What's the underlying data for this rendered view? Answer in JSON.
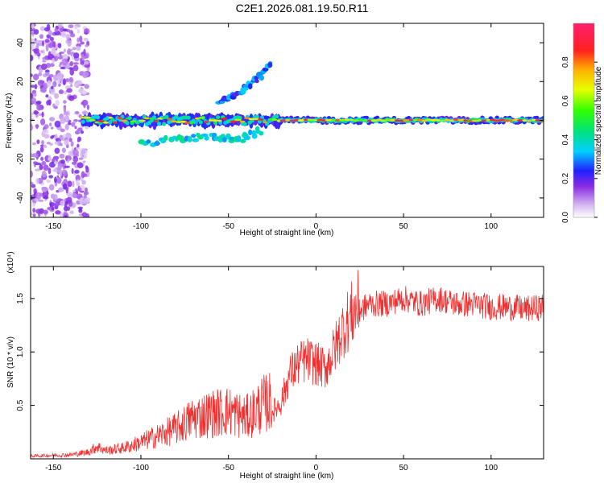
{
  "title": "C2E1.2026.081.19.50.R11",
  "chart_data": [
    {
      "type": "heatmap",
      "xlabel": "Height of straight line (km)",
      "ylabel": "Frequency (Hz)",
      "xlim": [
        -163,
        130
      ],
      "ylim": [
        -50,
        50
      ],
      "xticks": [
        -150,
        -100,
        -50,
        0,
        50,
        100
      ],
      "yticks": [
        -40,
        -20,
        0,
        20,
        40
      ],
      "colorbar": {
        "label": "Normalized spectral amplitude",
        "range": [
          0.0,
          1.0
        ],
        "ticks": [
          "0.0",
          "0.2",
          "0.4",
          "0.6",
          "0.8"
        ]
      },
      "signal": [
        {
          "name": "noise-region",
          "x_range": [
            -163,
            -130
          ],
          "y_range": [
            -50,
            50
          ],
          "amplitude": 0.1
        },
        {
          "name": "main-band",
          "x_range": [
            -133,
            130
          ],
          "center_freq": 0,
          "amplitude_range": [
            0.2,
            1.0
          ]
        },
        {
          "name": "upper-branch",
          "x": [
            -55,
            -45,
            -35,
            -25
          ],
          "y": [
            10,
            14,
            20,
            30
          ],
          "amplitude": 0.2
        },
        {
          "name": "lower-branch",
          "x": [
            -100,
            -80,
            -60,
            -45,
            -30
          ],
          "y": [
            -12,
            -10,
            -8,
            -10,
            -5
          ],
          "amplitude": 0.3
        }
      ]
    },
    {
      "type": "line",
      "xlabel": "Height of straight line (km)",
      "ylabel": "SNR (10 * v/v)",
      "yscale_label": "(x10⁴)",
      "xlim": [
        -163,
        130
      ],
      "ylim": [
        0,
        1.8
      ],
      "xticks": [
        -150,
        -100,
        -50,
        0,
        50,
        100
      ],
      "yticks": [
        "0.5",
        "1.0",
        "1.5"
      ],
      "series": [
        {
          "name": "SNR",
          "color": "#f03030",
          "x": [
            -163,
            -140,
            -130,
            -125,
            -120,
            -110,
            -100,
            -90,
            -80,
            -70,
            -60,
            -50,
            -40,
            -30,
            -25,
            -20,
            -15,
            -10,
            -5,
            0,
            5,
            10,
            15,
            20,
            25,
            30,
            40,
            50,
            60,
            70,
            80,
            90,
            100,
            110,
            120,
            130
          ],
          "y": [
            0.02,
            0.03,
            0.05,
            0.09,
            0.06,
            0.08,
            0.12,
            0.17,
            0.22,
            0.3,
            0.33,
            0.35,
            0.3,
            0.4,
            0.42,
            0.5,
            0.75,
            0.85,
            0.88,
            0.85,
            0.8,
            0.95,
            1.15,
            1.28,
            1.38,
            1.45,
            1.45,
            1.5,
            1.45,
            1.5,
            1.45,
            1.45,
            1.42,
            1.42,
            1.4,
            1.42
          ]
        }
      ]
    }
  ]
}
